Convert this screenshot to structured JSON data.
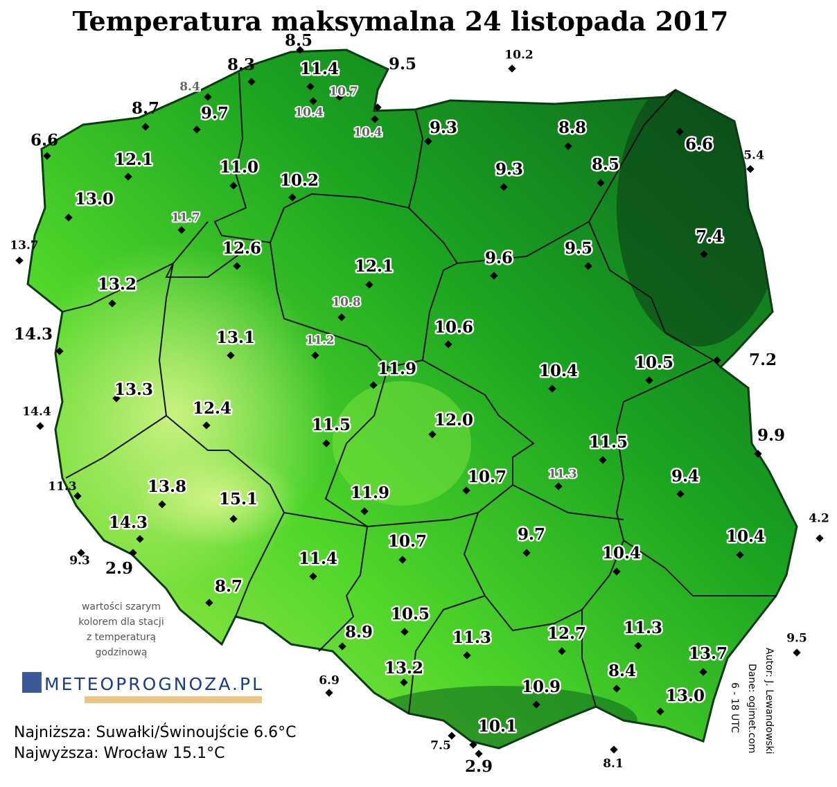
{
  "title": "Temperatura maksymalna 24 listopada 2017",
  "stations": [
    {
      "value": "8.5"
    },
    {
      "value": "8.3"
    },
    {
      "value": "11.4"
    },
    {
      "value": "10.7"
    },
    {
      "value": "10.4"
    },
    {
      "value": "9.5"
    },
    {
      "value": "10.4"
    },
    {
      "value": "10.2"
    },
    {
      "value": "8.4"
    },
    {
      "value": "8.7"
    },
    {
      "value": "9.7"
    },
    {
      "value": "6.6"
    },
    {
      "value": "12.1"
    },
    {
      "value": "11.0"
    },
    {
      "value": "10.2"
    },
    {
      "value": "13.0"
    },
    {
      "value": "11.7"
    },
    {
      "value": "13.7"
    },
    {
      "value": "12.6"
    },
    {
      "value": "12.1"
    },
    {
      "value": "13.2"
    },
    {
      "value": "10.8"
    },
    {
      "value": "14.3"
    },
    {
      "value": "13.1"
    },
    {
      "value": "11.2"
    },
    {
      "value": "10.6"
    },
    {
      "value": "11.9"
    },
    {
      "value": "9.3"
    },
    {
      "value": "8.8"
    },
    {
      "value": "9.3"
    },
    {
      "value": "8.5"
    },
    {
      "value": "6.6"
    },
    {
      "value": "5.4"
    },
    {
      "value": "7.4"
    },
    {
      "value": "9.6"
    },
    {
      "value": "9.5"
    },
    {
      "value": "10.4"
    },
    {
      "value": "10.5"
    },
    {
      "value": "7.2"
    },
    {
      "value": "13.3"
    },
    {
      "value": "14.4"
    },
    {
      "value": "12.4"
    },
    {
      "value": "11.5"
    },
    {
      "value": "12.0"
    },
    {
      "value": "11.5"
    },
    {
      "value": "9.9"
    },
    {
      "value": "11.3"
    },
    {
      "value": "13.8"
    },
    {
      "value": "15.1"
    },
    {
      "value": "10.7"
    },
    {
      "value": "11.3"
    },
    {
      "value": "9.4"
    },
    {
      "value": "11.9"
    },
    {
      "value": "14.3"
    },
    {
      "value": "4.2"
    },
    {
      "value": "10.4"
    },
    {
      "value": "9.3"
    },
    {
      "value": "2.9"
    },
    {
      "value": "10.7"
    },
    {
      "value": "9.7"
    },
    {
      "value": "11.4"
    },
    {
      "value": "10.4"
    },
    {
      "value": "8.7"
    },
    {
      "value": "8.9"
    },
    {
      "value": "10.5"
    },
    {
      "value": "11.3"
    },
    {
      "value": "12.7"
    },
    {
      "value": "11.3"
    },
    {
      "value": "9.5"
    },
    {
      "value": "13.7"
    },
    {
      "value": "13.2"
    },
    {
      "value": "6.9"
    },
    {
      "value": "8.4"
    },
    {
      "value": "10.9"
    },
    {
      "value": "13.0"
    },
    {
      "value": "10.1"
    },
    {
      "value": "7.5"
    },
    {
      "value": "2.9"
    },
    {
      "value": "8.1"
    }
  ],
  "note": [
    "wartości szarym",
    "kolorem dla stacji",
    "z temperaturą",
    "godzinową"
  ],
  "logo": "METEOPROGNOZA.PL",
  "summary": {
    "lowest": "Najniższa: Suwałki/Świnoujście 6.6°C",
    "highest": "Najwyższa: Wrocław 15.1°C"
  },
  "credits": [
    "Autor: J. Lewandowski",
    "Dane: ogimet.com",
    "6 - 18 UTC"
  ]
}
